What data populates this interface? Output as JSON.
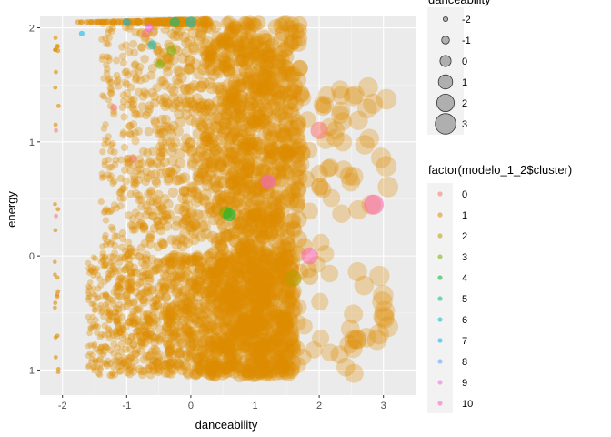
{
  "chart_data": {
    "type": "scatter",
    "title": "",
    "xlabel": "danceability",
    "ylabel": "energy",
    "xlim": [
      -2.35,
      3.5
    ],
    "ylim": [
      -1.22,
      2.1
    ],
    "x_ticks": [
      -2,
      -1,
      0,
      1,
      2,
      3
    ],
    "y_ticks": [
      -1,
      0,
      1,
      2
    ],
    "x_tick_labels": [
      "-2",
      "-1",
      "0",
      "1",
      "2",
      "3"
    ],
    "y_tick_labels": [
      "-1",
      "0",
      "1",
      "2"
    ],
    "grid": true,
    "panel_background": "#ebebeb",
    "dominant_cluster": "1",
    "size_legend": {
      "title": "danceability",
      "values": [
        -2,
        -1,
        0,
        1,
        2,
        3
      ],
      "labels": [
        "-2",
        "-1",
        "0",
        "1",
        "2",
        "3"
      ]
    },
    "color_legend": {
      "title": "factor(modelo_1_2$cluster)",
      "labels": [
        "0",
        "1",
        "2",
        "3",
        "4",
        "5",
        "6",
        "7",
        "8",
        "9",
        "10"
      ],
      "colors": [
        "#F8766D",
        "#DE8C00",
        "#B79F00",
        "#7CAE00",
        "#00BA38",
        "#00C08B",
        "#00BFC4",
        "#00B4F0",
        "#619CFF",
        "#F564E3",
        "#FF64B0"
      ]
    },
    "highlight_points": [
      {
        "cluster": "7",
        "x": -1.7,
        "y": 1.95
      },
      {
        "cluster": "7",
        "x": -1.0,
        "y": 2.05
      },
      {
        "cluster": "6",
        "x": -0.6,
        "y": 1.85
      },
      {
        "cluster": "3",
        "x": -0.48,
        "y": 1.68
      },
      {
        "cluster": "3",
        "x": 0.55,
        "y": 0.38
      },
      {
        "cluster": "4",
        "x": 0.6,
        "y": 0.36
      },
      {
        "cluster": "0",
        "x": -1.2,
        "y": 1.3
      },
      {
        "cluster": "0",
        "x": -0.9,
        "y": 0.85
      },
      {
        "cluster": "10",
        "x": 1.85,
        "y": 0.0
      },
      {
        "cluster": "10",
        "x": 2.85,
        "y": 0.45
      },
      {
        "cluster": "9",
        "x": 1.2,
        "y": 0.65
      },
      {
        "cluster": "0",
        "x": 2.0,
        "y": 1.1
      },
      {
        "cluster": "2",
        "x": 1.6,
        "y": -0.2
      },
      {
        "cluster": "0",
        "x": -2.1,
        "y": 0.35
      },
      {
        "cluster": "0",
        "x": -2.1,
        "y": 1.1
      },
      {
        "cluster": "5",
        "x": -0.25,
        "y": 2.05
      },
      {
        "cluster": "6",
        "x": 0.0,
        "y": 2.05
      },
      {
        "cluster": "0",
        "x": -0.7,
        "y": 1.95
      },
      {
        "cluster": "9",
        "x": -0.65,
        "y": 2.0
      },
      {
        "cluster": "3",
        "x": -0.3,
        "y": 1.8
      }
    ]
  }
}
